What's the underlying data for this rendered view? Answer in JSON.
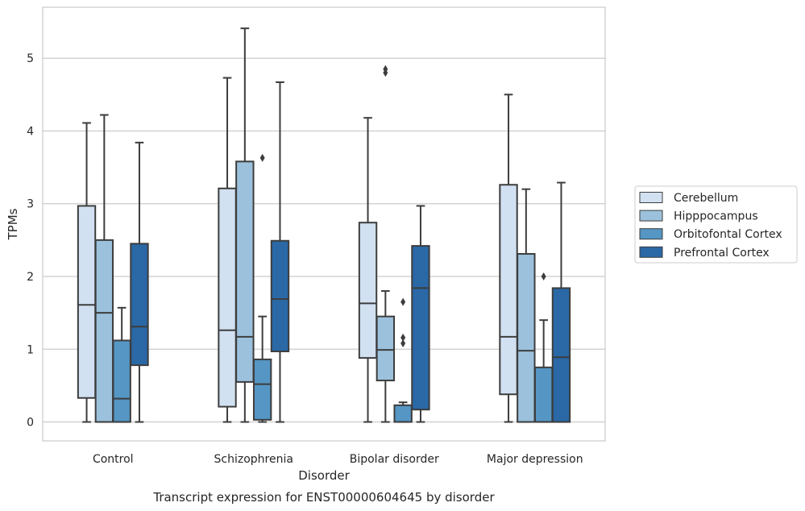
{
  "chart_data": {
    "type": "box",
    "title": "Transcript expression for ENST00000604645 by disorder",
    "xlabel": "Disorder",
    "ylabel": "TPMs",
    "ylim": [
      -0.26,
      5.7
    ],
    "yticks": [
      0,
      1,
      2,
      3,
      4,
      5
    ],
    "grid": "horizontal",
    "legend_position": "right",
    "categories": [
      "Control",
      "Schizophrenia",
      "Bipolar disorder",
      "Major depression"
    ],
    "series": [
      {
        "name": "Cerebellum",
        "color": "#d2e1f1",
        "boxes": [
          {
            "whislo": 0,
            "q1": 0.33,
            "med": 1.61,
            "q3": 2.97,
            "whishi": 4.11,
            "fliers": []
          },
          {
            "whislo": 0,
            "q1": 0.21,
            "med": 1.26,
            "q3": 3.21,
            "whishi": 4.73,
            "fliers": []
          },
          {
            "whislo": 0,
            "q1": 0.88,
            "med": 1.63,
            "q3": 2.74,
            "whishi": 4.18,
            "fliers": []
          },
          {
            "whislo": 0,
            "q1": 0.38,
            "med": 1.17,
            "q3": 3.26,
            "whishi": 4.5,
            "fliers": []
          }
        ]
      },
      {
        "name": "Hipppocampus",
        "color": "#9cc1dc",
        "boxes": [
          {
            "whislo": 0,
            "q1": 0,
            "med": 1.5,
            "q3": 2.5,
            "whishi": 4.22,
            "fliers": []
          },
          {
            "whislo": 0,
            "q1": 0.55,
            "med": 1.17,
            "q3": 3.58,
            "whishi": 5.41,
            "fliers": []
          },
          {
            "whislo": 0,
            "q1": 0.57,
            "med": 0.99,
            "q3": 1.45,
            "whishi": 1.8,
            "fliers": [
              4.8,
              4.85
            ]
          },
          {
            "whislo": 0,
            "q1": 0,
            "med": 0.98,
            "q3": 2.31,
            "whishi": 3.2,
            "fliers": []
          }
        ]
      },
      {
        "name": "Orbitofontal Cortex",
        "color": "#5596c4",
        "boxes": [
          {
            "whislo": 0,
            "q1": 0,
            "med": 0.32,
            "q3": 1.12,
            "whishi": 1.57,
            "fliers": []
          },
          {
            "whislo": 0,
            "q1": 0.03,
            "med": 0.52,
            "q3": 0.86,
            "whishi": 1.45,
            "fliers": [
              3.63
            ]
          },
          {
            "whislo": 0,
            "q1": 0,
            "med": 0,
            "q3": 0.23,
            "whishi": 0.27,
            "fliers": [
              1.08,
              1.16,
              1.65
            ]
          },
          {
            "whislo": 0,
            "q1": 0,
            "med": 0,
            "q3": 0.75,
            "whishi": 1.4,
            "fliers": [
              2.0
            ]
          }
        ]
      },
      {
        "name": "Prefrontal Cortex",
        "color": "#2a68a6",
        "boxes": [
          {
            "whislo": 0,
            "q1": 0.78,
            "med": 1.31,
            "q3": 2.45,
            "whishi": 3.84,
            "fliers": []
          },
          {
            "whislo": 0,
            "q1": 0.97,
            "med": 1.69,
            "q3": 2.49,
            "whishi": 4.67,
            "fliers": []
          },
          {
            "whislo": 0,
            "q1": 0.17,
            "med": 1.84,
            "q3": 2.42,
            "whishi": 2.97,
            "fliers": []
          },
          {
            "whislo": 0,
            "q1": 0,
            "med": 0.89,
            "q3": 1.84,
            "whishi": 3.29,
            "fliers": []
          }
        ]
      }
    ]
  }
}
